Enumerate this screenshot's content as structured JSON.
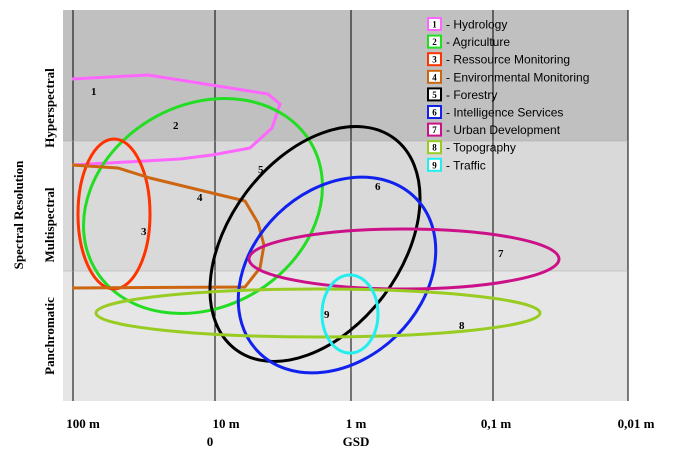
{
  "y_axis": {
    "label": "Spectral Resolution",
    "bands": [
      {
        "label": "Hyperspectral",
        "color": "#c0c0c0"
      },
      {
        "label": "Multispectral",
        "color": "#d9d9d9"
      },
      {
        "label": "Panchromatic",
        "color": "#e6e6e6"
      }
    ]
  },
  "x_axis": {
    "label": "GSD",
    "ticks": [
      "100 m",
      "10 m",
      "1 m",
      "0,1 m",
      "0,01 m"
    ],
    "zero_label": "0"
  },
  "legend": [
    {
      "num": "1",
      "label": "- Hydrology",
      "color": "#ff66ff"
    },
    {
      "num": "2",
      "label": "- Agriculture",
      "color": "#22dd22"
    },
    {
      "num": "3",
      "label": "- Ressource Monitoring",
      "color": "#ff3300"
    },
    {
      "num": "4",
      "label": "- Environmental Monitoring",
      "color": "#cc6611"
    },
    {
      "num": "5",
      "label": "- Forestry",
      "color": "#000000"
    },
    {
      "num": "6",
      "label": "- Intelligence Services",
      "color": "#1122ee"
    },
    {
      "num": "7",
      "label": "- Urban Development",
      "color": "#cc1188"
    },
    {
      "num": "8",
      "label": "- Topography",
      "color": "#99cc22"
    },
    {
      "num": "9",
      "label": "- Traffic",
      "color": "#22eeee"
    }
  ],
  "shape_labels": [
    "1",
    "2",
    "3",
    "4",
    "5",
    "6",
    "7",
    "8",
    "9"
  ]
}
